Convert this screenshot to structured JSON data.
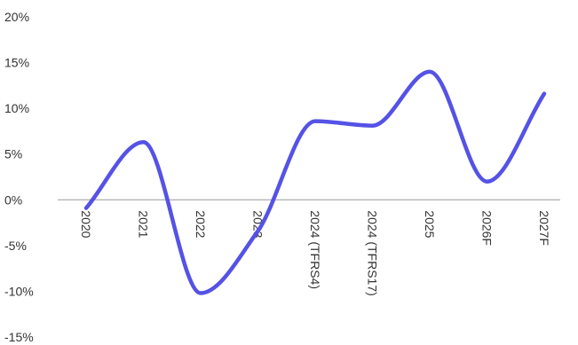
{
  "chart_data": {
    "type": "line",
    "title": "",
    "xlabel": "",
    "ylabel": "",
    "categories": [
      "2020",
      "2021",
      "2022",
      "2023",
      "2024 (TFRS4)",
      "2024 (TFRS17)",
      "2025",
      "2026F",
      "2027F"
    ],
    "series": [
      {
        "values": [
          -0.9,
          6.3,
          -10.2,
          -3.4,
          8.6,
          8.1,
          14.0,
          2.0,
          11.6
        ]
      }
    ],
    "y_ticks": [
      "20%",
      "15%",
      "10%",
      "5%",
      "0%",
      "-5%",
      "-10%",
      "-15%"
    ],
    "ylim": [
      -15,
      20
    ],
    "grid": false,
    "legend": "none",
    "line_color": "#5552e6",
    "text_color": "#333333"
  }
}
